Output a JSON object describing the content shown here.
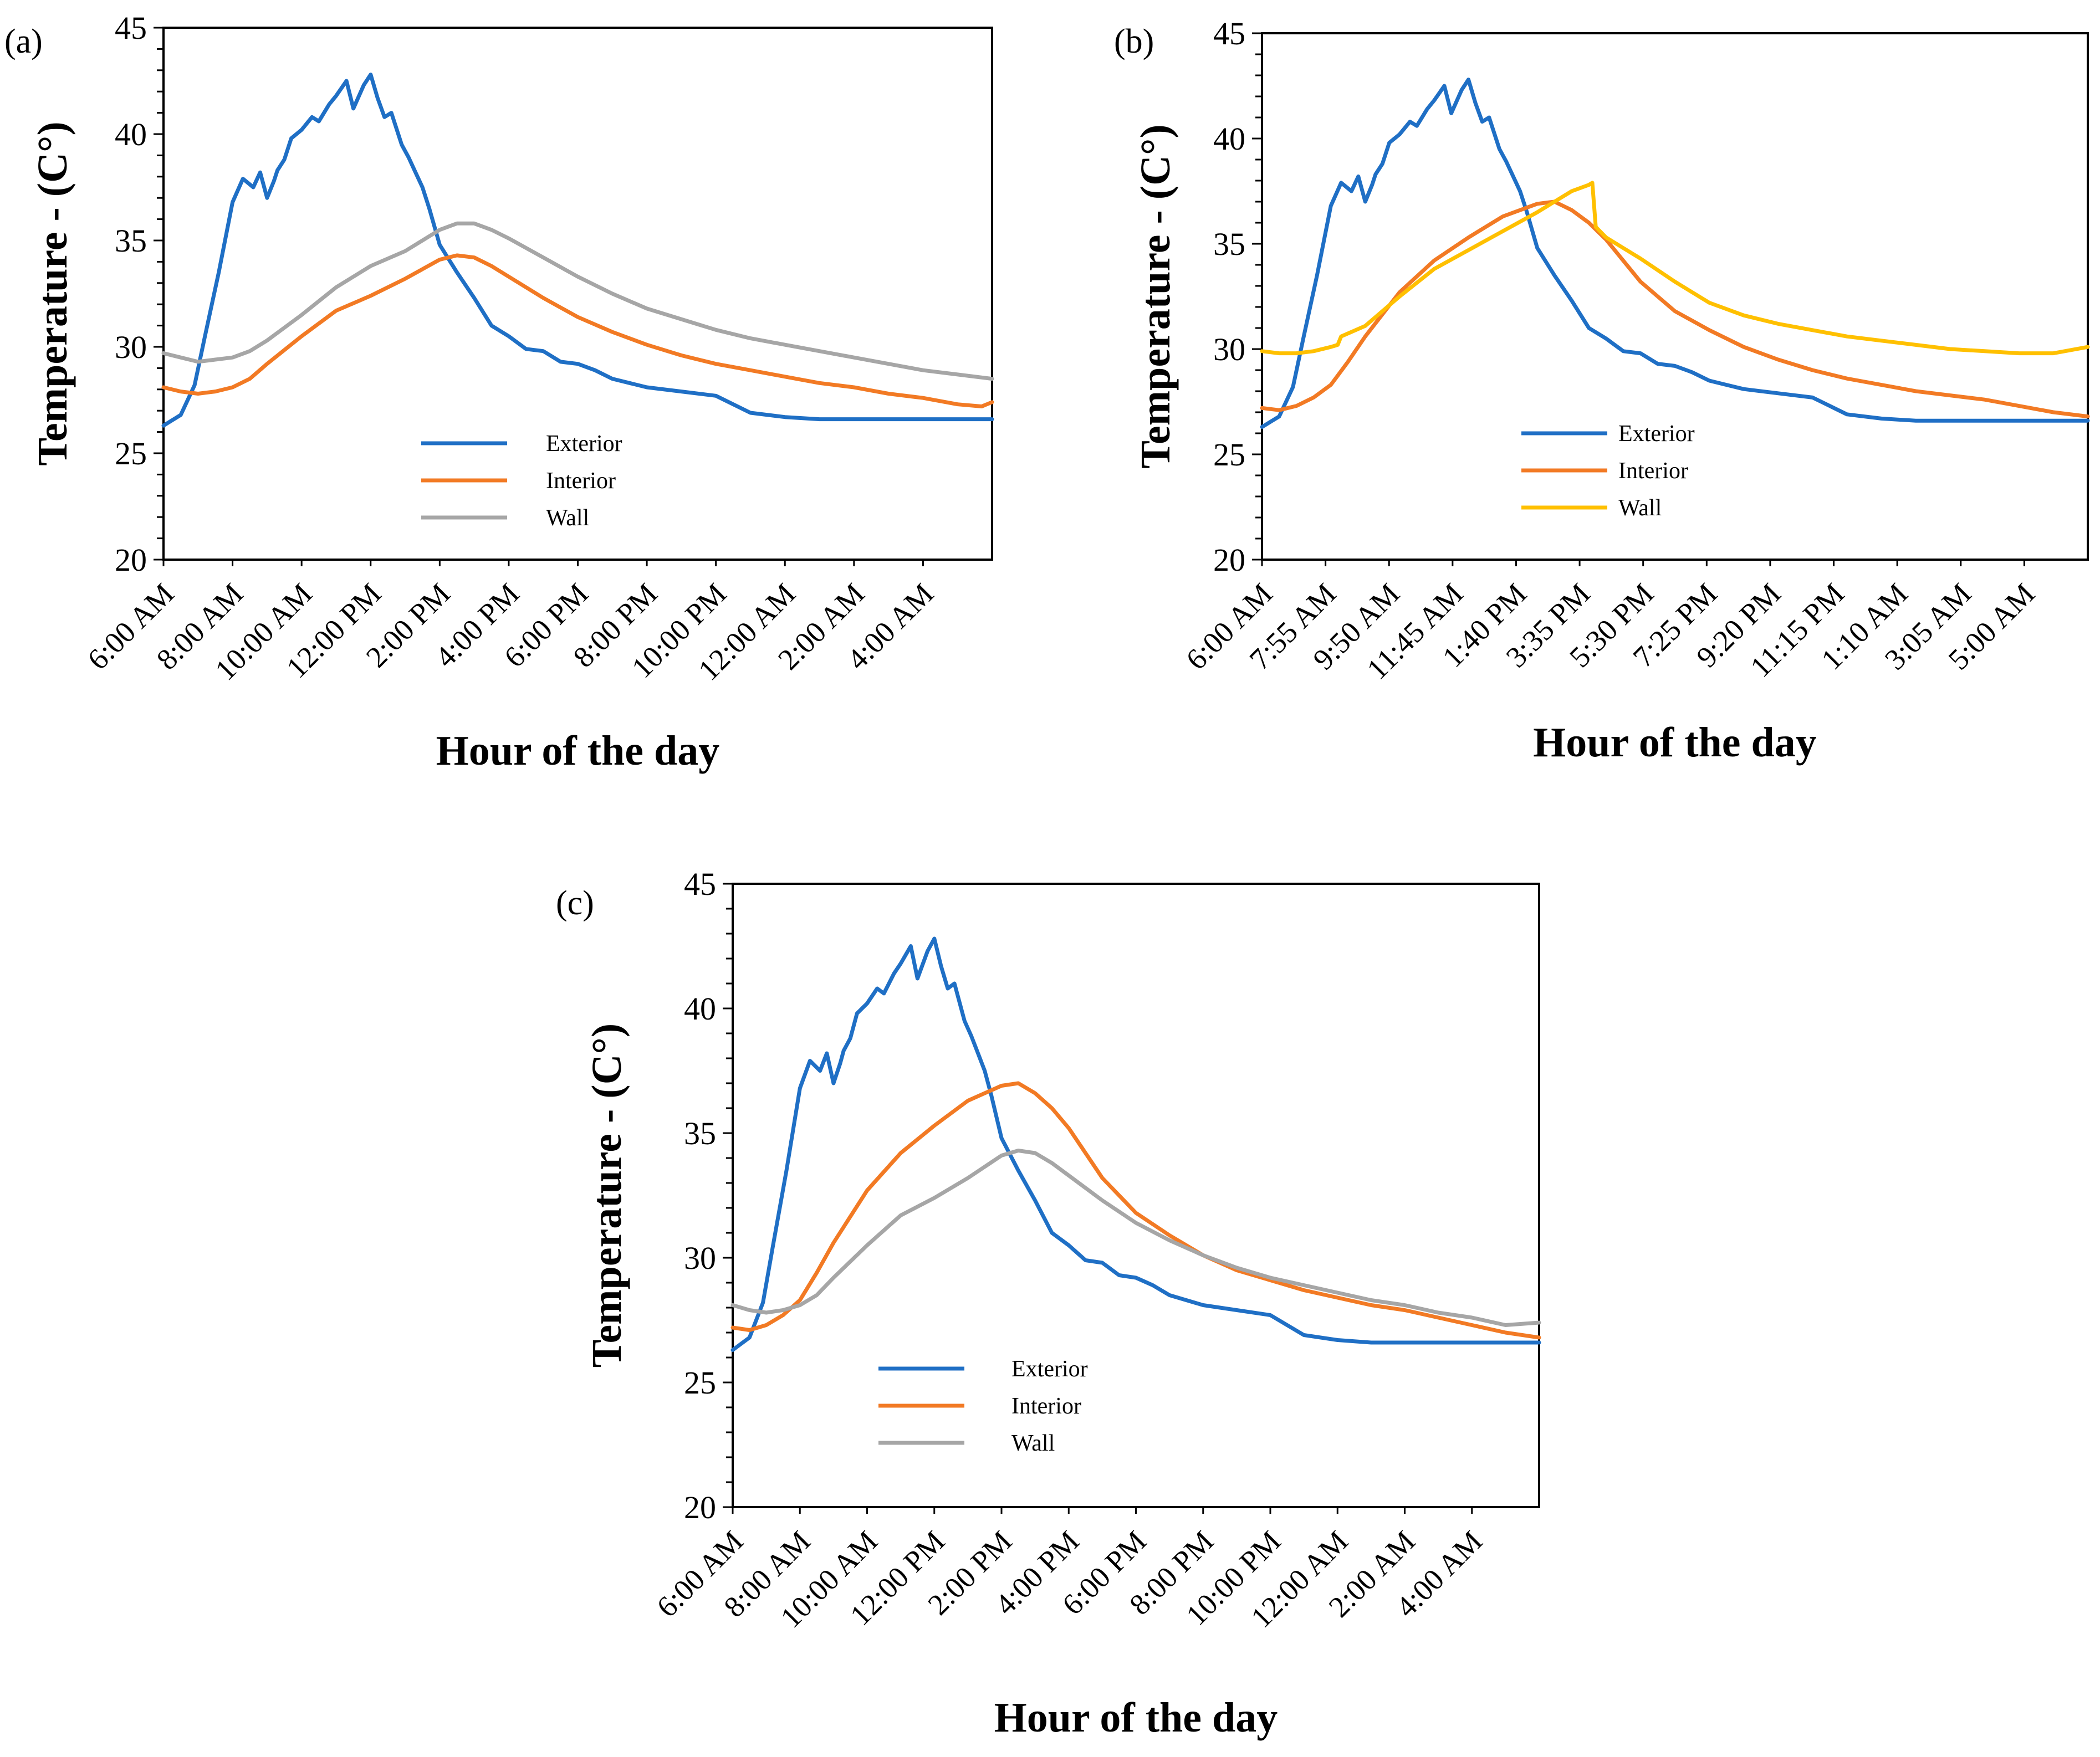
{
  "chart_data": [
    {
      "panel": "(a)",
      "type": "line",
      "ylabel": "Temperature - (C°)",
      "xlabel": "Hour of the day",
      "ylim": [
        20,
        45
      ],
      "yticks": [
        20,
        25,
        30,
        35,
        40,
        45
      ],
      "x_tick_labels": [
        "6:00 AM",
        "8:00 AM",
        "10:00 AM",
        "12:00 PM",
        "2:00 PM",
        "4:00 PM",
        "6:00 PM",
        "8:00 PM",
        "10:00 PM",
        "12:00 AM",
        "2:00 AM",
        "4:00 AM"
      ],
      "x_unit": "hours after 6:00 AM",
      "xlim": [
        0,
        24
      ],
      "legend": [
        "Exterior",
        "Interior",
        "Wall"
      ],
      "series": [
        {
          "name": "Exterior",
          "color": "#1F6FC5",
          "x": [
            0,
            0.5,
            0.9,
            1.2,
            1.6,
            2,
            2.3,
            2.6,
            2.8,
            3.0,
            3.2,
            3.3,
            3.5,
            3.7,
            4,
            4.3,
            4.5,
            4.8,
            5,
            5.3,
            5.5,
            5.8,
            6,
            6.2,
            6.4,
            6.6,
            6.9,
            7.1,
            7.3,
            7.5,
            7.7,
            8,
            8.5,
            9,
            9.5,
            10,
            10.5,
            11,
            11.5,
            12,
            12.5,
            13,
            13.5,
            14,
            15,
            16,
            17,
            18,
            19,
            20,
            21,
            22,
            23,
            24
          ],
          "values": [
            26.3,
            26.8,
            28.2,
            30.5,
            33.5,
            36.8,
            37.9,
            37.5,
            38.2,
            37,
            37.8,
            38.3,
            38.8,
            39.8,
            40.2,
            40.8,
            40.6,
            41.4,
            41.8,
            42.5,
            41.2,
            42.3,
            42.8,
            41.7,
            40.8,
            41,
            39.5,
            38.9,
            38.2,
            37.5,
            36.5,
            34.8,
            33.5,
            32.3,
            31,
            30.5,
            29.9,
            29.8,
            29.3,
            29.2,
            28.9,
            28.5,
            28.3,
            28.1,
            27.9,
            27.7,
            26.9,
            26.7,
            26.6,
            26.6,
            26.6,
            26.6,
            26.6,
            26.6
          ]
        },
        {
          "name": "Interior",
          "color": "#F27A24",
          "x": [
            0,
            0.5,
            1,
            1.5,
            2,
            2.5,
            3,
            4,
            5,
            6,
            7,
            8,
            8.5,
            9,
            9.5,
            10,
            11,
            12,
            13,
            14,
            15,
            16,
            17,
            18,
            19,
            20,
            21,
            22,
            23,
            23.7,
            24
          ],
          "values": [
            28.1,
            27.9,
            27.8,
            27.9,
            28.1,
            28.5,
            29.2,
            30.5,
            31.7,
            32.4,
            33.2,
            34.1,
            34.3,
            34.2,
            33.8,
            33.3,
            32.3,
            31.4,
            30.7,
            30.1,
            29.6,
            29.2,
            28.9,
            28.6,
            28.3,
            28.1,
            27.8,
            27.6,
            27.3,
            27.2,
            27.4
          ]
        },
        {
          "name": "Wall",
          "color": "#A6A6A6",
          "x": [
            0,
            0.5,
            1,
            1.5,
            2,
            2.5,
            3,
            4,
            5,
            6,
            7,
            8,
            8.5,
            9,
            9.5,
            10,
            11,
            12,
            13,
            14,
            15,
            16,
            17,
            18,
            19,
            20,
            21,
            22,
            23,
            24
          ],
          "values": [
            29.7,
            29.5,
            29.3,
            29.4,
            29.5,
            29.8,
            30.3,
            31.5,
            32.8,
            33.8,
            34.5,
            35.5,
            35.8,
            35.8,
            35.5,
            35.1,
            34.2,
            33.3,
            32.5,
            31.8,
            31.3,
            30.8,
            30.4,
            30.1,
            29.8,
            29.5,
            29.2,
            28.9,
            28.7,
            28.5
          ]
        }
      ]
    },
    {
      "panel": "(b)",
      "type": "line",
      "ylabel": "Temperature - (C°)",
      "xlabel": "Hour of the day",
      "ylim": [
        20,
        45
      ],
      "yticks": [
        20,
        25,
        30,
        35,
        40,
        45
      ],
      "x_tick_labels": [
        "6:00 AM",
        "7:55 AM",
        "9:50 AM",
        "11:45 AM",
        "1:40 PM",
        "3:35 PM",
        "5:30 PM",
        "7:25 PM",
        "9:20 PM",
        "11:15 PM",
        "1:10 AM",
        "3:05 AM",
        "5:00 AM"
      ],
      "x_unit": "hours after 6:00 AM",
      "xlim": [
        0,
        24
      ],
      "legend": [
        "Exterior",
        "Interior",
        "Wall"
      ],
      "series": [
        {
          "name": "Exterior",
          "color": "#1F6FC5",
          "x": [
            0,
            0.5,
            0.9,
            1.2,
            1.6,
            2,
            2.3,
            2.6,
            2.8,
            3.0,
            3.2,
            3.3,
            3.5,
            3.7,
            4,
            4.3,
            4.5,
            4.8,
            5,
            5.3,
            5.5,
            5.8,
            6,
            6.2,
            6.4,
            6.6,
            6.9,
            7.1,
            7.3,
            7.5,
            7.7,
            8,
            8.5,
            9,
            9.5,
            10,
            10.5,
            11,
            11.5,
            12,
            12.5,
            13,
            13.5,
            14,
            15,
            16,
            17,
            18,
            19,
            20,
            21,
            22,
            23,
            24
          ],
          "values": [
            26.3,
            26.8,
            28.2,
            30.5,
            33.5,
            36.8,
            37.9,
            37.5,
            38.2,
            37,
            37.8,
            38.3,
            38.8,
            39.8,
            40.2,
            40.8,
            40.6,
            41.4,
            41.8,
            42.5,
            41.2,
            42.3,
            42.8,
            41.7,
            40.8,
            41,
            39.5,
            38.9,
            38.2,
            37.5,
            36.5,
            34.8,
            33.5,
            32.3,
            31,
            30.5,
            29.9,
            29.8,
            29.3,
            29.2,
            28.9,
            28.5,
            28.3,
            28.1,
            27.9,
            27.7,
            26.9,
            26.7,
            26.6,
            26.6,
            26.6,
            26.6,
            26.6,
            26.6
          ]
        },
        {
          "name": "Interior",
          "color": "#F27A24",
          "x": [
            0,
            0.5,
            1,
            1.5,
            2,
            2.5,
            3,
            4,
            5,
            6,
            7,
            8,
            8.5,
            9,
            9.5,
            10,
            11,
            12,
            13,
            14,
            15,
            16,
            17,
            18,
            19,
            20,
            21,
            22,
            23,
            24
          ],
          "values": [
            27.2,
            27.1,
            27.3,
            27.7,
            28.3,
            29.4,
            30.6,
            32.7,
            34.2,
            35.3,
            36.3,
            36.9,
            37,
            36.6,
            36,
            35.2,
            33.2,
            31.8,
            30.9,
            30.1,
            29.5,
            29.0,
            28.6,
            28.3,
            28.0,
            27.8,
            27.6,
            27.3,
            27.0,
            26.8
          ]
        },
        {
          "name": "Wall",
          "color": "#FFC000",
          "x": [
            0,
            0.5,
            1,
            1.5,
            2,
            2.2,
            2.3,
            3,
            4,
            5,
            6,
            7,
            8,
            9,
            9.5,
            9.6,
            9.7,
            10,
            11,
            12,
            13,
            14,
            15,
            16,
            17,
            18,
            19,
            20,
            21,
            22,
            23,
            24
          ],
          "values": [
            29.9,
            29.8,
            29.8,
            29.9,
            30.1,
            30.2,
            30.6,
            31.1,
            32.5,
            33.8,
            34.7,
            35.6,
            36.5,
            37.5,
            37.8,
            37.9,
            35.8,
            35.3,
            34.3,
            33.2,
            32.2,
            31.6,
            31.2,
            30.9,
            30.6,
            30.4,
            30.2,
            30.0,
            29.9,
            29.8,
            29.8,
            30.1
          ]
        }
      ]
    },
    {
      "panel": "(c)",
      "type": "line",
      "ylabel": "Temperature - (C°)",
      "xlabel": "Hour of the day",
      "ylim": [
        20,
        45
      ],
      "yticks": [
        20,
        25,
        30,
        35,
        40,
        45
      ],
      "x_tick_labels": [
        "6:00 AM",
        "8:00 AM",
        "10:00 AM",
        "12:00 PM",
        "2:00 PM",
        "4:00 PM",
        "6:00 PM",
        "8:00 PM",
        "10:00 PM",
        "12:00 AM",
        "2:00 AM",
        "4:00 AM"
      ],
      "x_unit": "hours after 6:00 AM",
      "xlim": [
        0,
        24
      ],
      "legend": [
        "Exterior",
        "Interior",
        "Wall"
      ],
      "series": [
        {
          "name": "Exterior",
          "color": "#1F6FC5",
          "x": [
            0,
            0.5,
            0.9,
            1.2,
            1.6,
            2,
            2.3,
            2.6,
            2.8,
            3.0,
            3.2,
            3.3,
            3.5,
            3.7,
            4,
            4.3,
            4.5,
            4.8,
            5,
            5.3,
            5.5,
            5.8,
            6,
            6.2,
            6.4,
            6.6,
            6.9,
            7.1,
            7.3,
            7.5,
            7.7,
            8,
            8.5,
            9,
            9.5,
            10,
            10.5,
            11,
            11.5,
            12,
            12.5,
            13,
            13.5,
            14,
            15,
            16,
            17,
            18,
            19,
            20,
            21,
            22,
            23,
            24
          ],
          "values": [
            26.3,
            26.8,
            28.2,
            30.5,
            33.5,
            36.8,
            37.9,
            37.5,
            38.2,
            37,
            37.8,
            38.3,
            38.8,
            39.8,
            40.2,
            40.8,
            40.6,
            41.4,
            41.8,
            42.5,
            41.2,
            42.3,
            42.8,
            41.7,
            40.8,
            41,
            39.5,
            38.9,
            38.2,
            37.5,
            36.5,
            34.8,
            33.5,
            32.3,
            31,
            30.5,
            29.9,
            29.8,
            29.3,
            29.2,
            28.9,
            28.5,
            28.3,
            28.1,
            27.9,
            27.7,
            26.9,
            26.7,
            26.6,
            26.6,
            26.6,
            26.6,
            26.6,
            26.6
          ]
        },
        {
          "name": "Interior",
          "color": "#F27A24",
          "x": [
            0,
            0.5,
            1,
            1.5,
            2,
            2.5,
            3,
            4,
            5,
            6,
            7,
            8,
            8.5,
            9,
            9.5,
            10,
            11,
            12,
            13,
            14,
            15,
            16,
            17,
            18,
            19,
            20,
            21,
            22,
            23,
            24
          ],
          "values": [
            27.2,
            27.1,
            27.3,
            27.7,
            28.3,
            29.4,
            30.6,
            32.7,
            34.2,
            35.3,
            36.3,
            36.9,
            37,
            36.6,
            36,
            35.2,
            33.2,
            31.8,
            30.9,
            30.1,
            29.5,
            29.1,
            28.7,
            28.4,
            28.1,
            27.9,
            27.6,
            27.3,
            27.0,
            26.8
          ]
        },
        {
          "name": "Wall",
          "color": "#A6A6A6",
          "x": [
            0,
            0.5,
            1,
            1.5,
            2,
            2.5,
            3,
            4,
            5,
            6,
            7,
            8,
            8.5,
            9,
            9.5,
            10,
            11,
            12,
            13,
            14,
            15,
            16,
            17,
            18,
            19,
            20,
            21,
            22,
            23,
            24
          ],
          "values": [
            28.1,
            27.9,
            27.8,
            27.9,
            28.1,
            28.5,
            29.2,
            30.5,
            31.7,
            32.4,
            33.2,
            34.1,
            34.3,
            34.2,
            33.8,
            33.3,
            32.3,
            31.4,
            30.7,
            30.1,
            29.6,
            29.2,
            28.9,
            28.6,
            28.3,
            28.1,
            27.8,
            27.6,
            27.3,
            27.4
          ]
        }
      ]
    }
  ]
}
